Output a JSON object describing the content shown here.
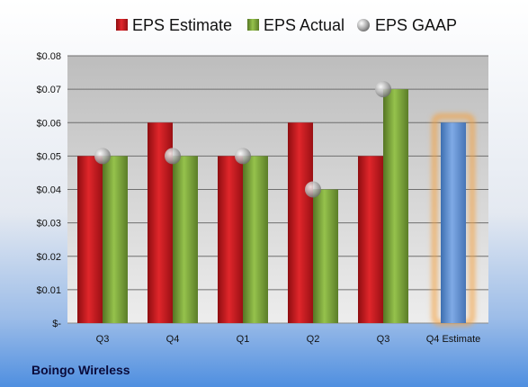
{
  "chart_data": {
    "type": "bar",
    "categories": [
      "Q3",
      "Q4",
      "Q1",
      "Q2",
      "Q3",
      "Q4 Estimate"
    ],
    "series": [
      {
        "name": "EPS Estimate",
        "type": "bar",
        "color": "#c4161c",
        "values": [
          0.05,
          0.06,
          0.05,
          0.06,
          0.05,
          null
        ]
      },
      {
        "name": "EPS Actual",
        "type": "bar",
        "color": "#7aa33a",
        "values": [
          0.05,
          0.05,
          0.05,
          0.04,
          0.07,
          null
        ]
      },
      {
        "name": "EPS GAAP",
        "type": "marker",
        "color": "#b0b0b0",
        "values": [
          0.05,
          0.05,
          0.05,
          0.04,
          0.07,
          null
        ]
      },
      {
        "name": "",
        "type": "bar",
        "color": "#5b8fd0",
        "values": [
          null,
          null,
          null,
          null,
          null,
          0.06
        ]
      }
    ],
    "highlight_color": "#f5a03c",
    "ylim": [
      0,
      0.08
    ],
    "yticks": [
      "$-",
      "$0.01",
      "$0.02",
      "$0.03",
      "$0.04",
      "$0.05",
      "$0.06",
      "$0.07",
      "$0.08"
    ],
    "grid": true,
    "legend_position": "top",
    "company": "Boingo Wireless"
  }
}
